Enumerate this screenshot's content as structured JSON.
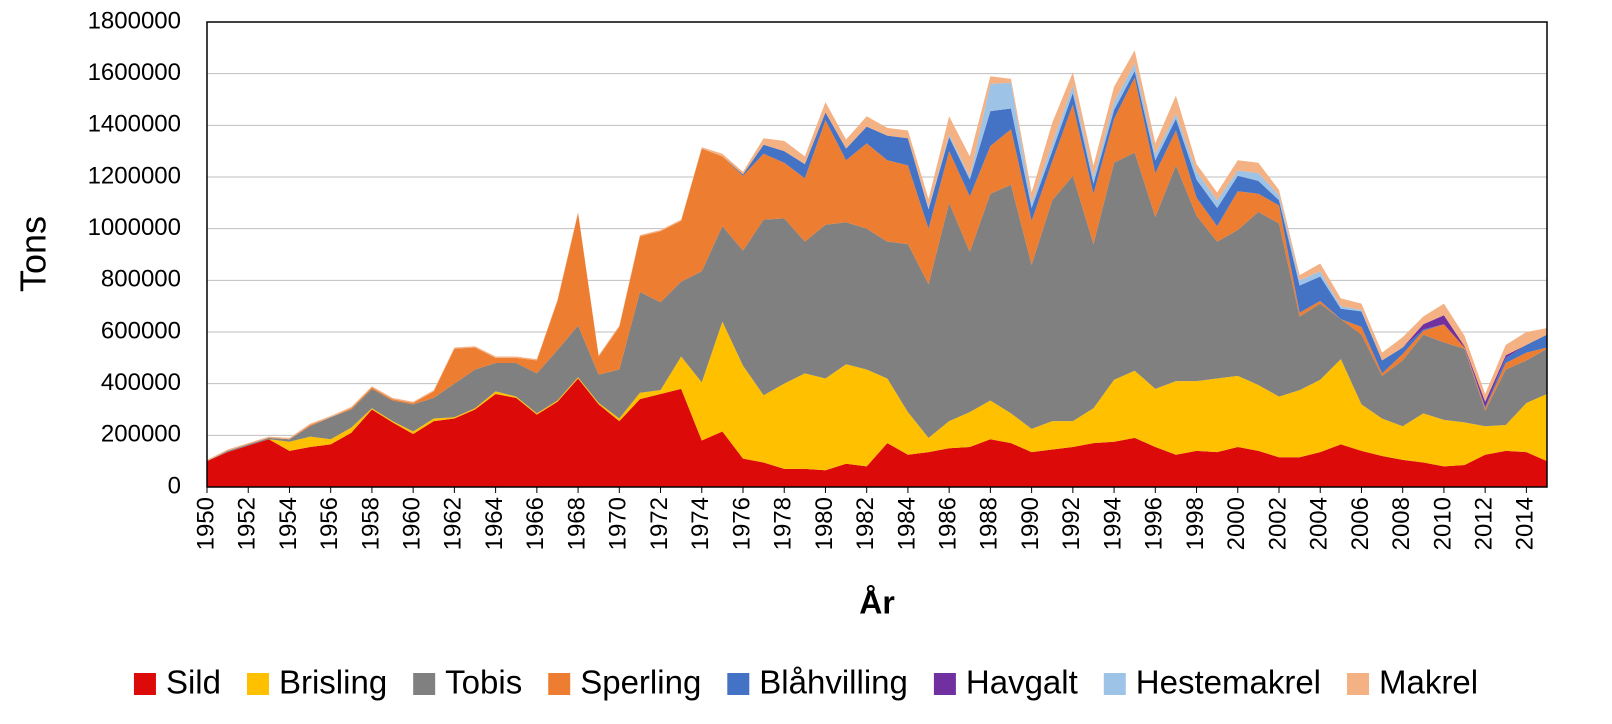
{
  "chart_data": {
    "type": "stacked_area",
    "y_label": "Tons",
    "x_label": "År",
    "x": [
      1950,
      1951,
      1952,
      1953,
      1954,
      1955,
      1956,
      1957,
      1958,
      1959,
      1960,
      1961,
      1962,
      1963,
      1964,
      1965,
      1966,
      1967,
      1968,
      1969,
      1970,
      1971,
      1972,
      1973,
      1974,
      1975,
      1976,
      1977,
      1978,
      1979,
      1980,
      1981,
      1982,
      1983,
      1984,
      1985,
      1986,
      1987,
      1988,
      1989,
      1990,
      1991,
      1992,
      1993,
      1994,
      1995,
      1996,
      1997,
      1998,
      1999,
      2000,
      2001,
      2002,
      2003,
      2004,
      2005,
      2006,
      2007,
      2008,
      2009,
      2010,
      2011,
      2012,
      2013,
      2014,
      2015
    ],
    "xlim": [
      1950,
      2015
    ],
    "xticks": [
      1950,
      1952,
      1954,
      1956,
      1958,
      1960,
      1962,
      1964,
      1966,
      1968,
      1970,
      1972,
      1974,
      1976,
      1978,
      1980,
      1982,
      1984,
      1986,
      1988,
      1990,
      1992,
      1994,
      1996,
      1998,
      2000,
      2002,
      2004,
      2006,
      2008,
      2010,
      2012,
      2014
    ],
    "ylim": [
      0,
      1800000
    ],
    "yticks": [
      0,
      200000,
      400000,
      600000,
      800000,
      1000000,
      1200000,
      1400000,
      1600000,
      1800000
    ],
    "grid": true,
    "legend": "bottom",
    "series": [
      {
        "name": "Sild",
        "color": "#dd0a0a",
        "values": [
          100000,
          135000,
          160000,
          185000,
          140000,
          155000,
          165000,
          210000,
          300000,
          250000,
          205000,
          255000,
          265000,
          300000,
          360000,
          345000,
          280000,
          330000,
          420000,
          320000,
          255000,
          340000,
          360000,
          380000,
          180000,
          215000,
          110000,
          95000,
          70000,
          70000,
          65000,
          90000,
          80000,
          170000,
          125000,
          135000,
          150000,
          155000,
          185000,
          170000,
          135000,
          145000,
          155000,
          170000,
          175000,
          190000,
          155000,
          125000,
          140000,
          135000,
          155000,
          140000,
          115000,
          115000,
          135000,
          165000,
          140000,
          120000,
          105000,
          95000,
          80000,
          85000,
          125000,
          140000,
          135000,
          100000
        ]
      },
      {
        "name": "Brisling",
        "color": "#ffc000",
        "values": [
          0,
          0,
          0,
          0,
          35000,
          40000,
          20000,
          20000,
          5000,
          5000,
          10000,
          10000,
          5000,
          5000,
          10000,
          5000,
          5000,
          5000,
          5000,
          5000,
          10000,
          25000,
          15000,
          125000,
          225000,
          425000,
          360000,
          260000,
          330000,
          370000,
          355000,
          385000,
          375000,
          250000,
          165000,
          55000,
          105000,
          135000,
          150000,
          115000,
          90000,
          110000,
          100000,
          135000,
          240000,
          260000,
          225000,
          285000,
          270000,
          285000,
          275000,
          255000,
          235000,
          260000,
          280000,
          330000,
          180000,
          145000,
          130000,
          190000,
          180000,
          165000,
          110000,
          100000,
          190000,
          260000
        ]
      },
      {
        "name": "Tobis",
        "color": "#808080",
        "values": [
          0,
          5000,
          5000,
          5000,
          10000,
          40000,
          85000,
          70000,
          75000,
          80000,
          105000,
          80000,
          130000,
          150000,
          110000,
          130000,
          155000,
          195000,
          200000,
          110000,
          190000,
          390000,
          340000,
          290000,
          430000,
          370000,
          445000,
          680000,
          640000,
          510000,
          595000,
          550000,
          545000,
          530000,
          650000,
          595000,
          845000,
          620000,
          800000,
          885000,
          635000,
          855000,
          950000,
          635000,
          840000,
          845000,
          665000,
          835000,
          640000,
          530000,
          565000,
          670000,
          670000,
          285000,
          295000,
          155000,
          270000,
          165000,
          255000,
          305000,
          300000,
          285000,
          60000,
          215000,
          165000,
          175000
        ]
      },
      {
        "name": "Sperling",
        "color": "#ed7d31",
        "values": [
          0,
          0,
          0,
          0,
          0,
          5000,
          0,
          5000,
          5000,
          5000,
          5000,
          25000,
          135000,
          85000,
          20000,
          20000,
          50000,
          190000,
          435000,
          70000,
          165000,
          215000,
          275000,
          235000,
          475000,
          270000,
          290000,
          255000,
          215000,
          245000,
          405000,
          240000,
          330000,
          315000,
          305000,
          215000,
          200000,
          215000,
          185000,
          215000,
          170000,
          150000,
          275000,
          195000,
          170000,
          290000,
          170000,
          135000,
          70000,
          60000,
          150000,
          70000,
          70000,
          15000,
          10000,
          0,
          30000,
          10000,
          25000,
          15000,
          70000,
          5000,
          10000,
          25000,
          30000,
          5000
        ]
      },
      {
        "name": "Blåhvilling",
        "color": "#4472c4",
        "values": [
          0,
          0,
          0,
          0,
          0,
          0,
          0,
          0,
          0,
          0,
          0,
          0,
          0,
          0,
          0,
          0,
          0,
          0,
          0,
          0,
          0,
          0,
          0,
          0,
          0,
          0,
          5000,
          35000,
          45000,
          55000,
          30000,
          45000,
          65000,
          95000,
          105000,
          75000,
          55000,
          65000,
          135000,
          80000,
          50000,
          40000,
          45000,
          40000,
          35000,
          25000,
          50000,
          45000,
          70000,
          70000,
          60000,
          50000,
          20000,
          105000,
          95000,
          40000,
          60000,
          50000,
          25000,
          5000,
          0,
          0,
          5000,
          20000,
          30000,
          50000
        ]
      },
      {
        "name": "Havgalt",
        "color": "#7030a0",
        "values": [
          0,
          0,
          0,
          0,
          0,
          0,
          0,
          0,
          0,
          0,
          0,
          0,
          0,
          0,
          0,
          0,
          0,
          0,
          0,
          0,
          0,
          0,
          0,
          0,
          0,
          0,
          0,
          0,
          0,
          0,
          0,
          0,
          0,
          0,
          0,
          0,
          0,
          0,
          0,
          0,
          0,
          0,
          0,
          0,
          0,
          0,
          0,
          0,
          0,
          0,
          0,
          0,
          0,
          0,
          0,
          0,
          0,
          0,
          0,
          20000,
          35000,
          5000,
          20000,
          10000,
          0,
          0
        ]
      },
      {
        "name": "Hestemakrel",
        "color": "#9dc3e6",
        "values": [
          0,
          0,
          0,
          0,
          0,
          0,
          0,
          0,
          0,
          0,
          0,
          0,
          0,
          0,
          0,
          0,
          0,
          0,
          0,
          0,
          0,
          0,
          0,
          0,
          0,
          0,
          0,
          0,
          0,
          0,
          0,
          0,
          0,
          0,
          0,
          5000,
          10000,
          10000,
          105000,
          100000,
          20000,
          30000,
          30000,
          25000,
          30000,
          30000,
          25000,
          20000,
          30000,
          30000,
          20000,
          30000,
          20000,
          20000,
          20000,
          10000,
          5000,
          0,
          0,
          0,
          0,
          0,
          0,
          0,
          0,
          0
        ]
      },
      {
        "name": "Makrel",
        "color": "#f4b183",
        "values": [
          5000,
          5000,
          5000,
          5000,
          5000,
          5000,
          5000,
          5000,
          5000,
          5000,
          5000,
          5000,
          5000,
          5000,
          5000,
          5000,
          5000,
          5000,
          5000,
          5000,
          5000,
          5000,
          5000,
          5000,
          5000,
          10000,
          10000,
          25000,
          40000,
          30000,
          40000,
          35000,
          40000,
          30000,
          30000,
          35000,
          70000,
          80000,
          30000,
          15000,
          40000,
          80000,
          50000,
          45000,
          60000,
          50000,
          40000,
          70000,
          30000,
          30000,
          40000,
          40000,
          20000,
          20000,
          30000,
          30000,
          25000,
          30000,
          40000,
          30000,
          45000,
          40000,
          30000,
          40000,
          50000,
          25000
        ]
      }
    ]
  }
}
